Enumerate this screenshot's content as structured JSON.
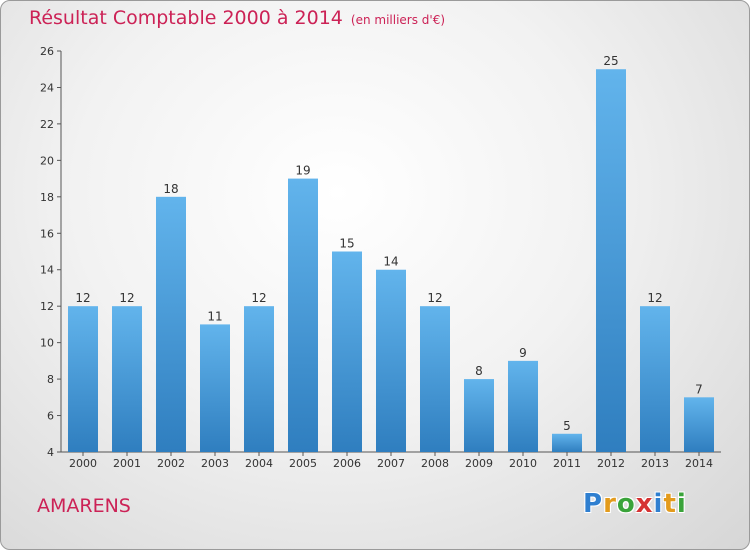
{
  "header": {
    "title": "Résultat Comptable 2000 à 2014",
    "subtitle": "(en milliers d'€)"
  },
  "place_name": "AMARENS",
  "logo": {
    "text": "Proxiti",
    "letters": [
      "P",
      "r",
      "o",
      "x",
      "i",
      "t",
      "i"
    ]
  },
  "colors": {
    "bar_light": "#62b4ec",
    "bar_dark": "#2f7ebf",
    "title": "#cc2256"
  },
  "chart_data": {
    "type": "bar",
    "title": "Résultat Comptable 2000 à 2014",
    "subtitle": "(en milliers d'€)",
    "xlabel": "",
    "ylabel": "",
    "categories": [
      "2000",
      "2001",
      "2002",
      "2003",
      "2004",
      "2005",
      "2006",
      "2007",
      "2008",
      "2009",
      "2010",
      "2011",
      "2012",
      "2013",
      "2014"
    ],
    "values": [
      12,
      12,
      18,
      11,
      12,
      19,
      15,
      14,
      12,
      8,
      9,
      5,
      25,
      12,
      7
    ],
    "ylim": [
      4,
      26
    ],
    "yticks": [
      4,
      6,
      8,
      10,
      12,
      14,
      16,
      18,
      20,
      22,
      24,
      26
    ],
    "grid": false,
    "legend": "none"
  }
}
